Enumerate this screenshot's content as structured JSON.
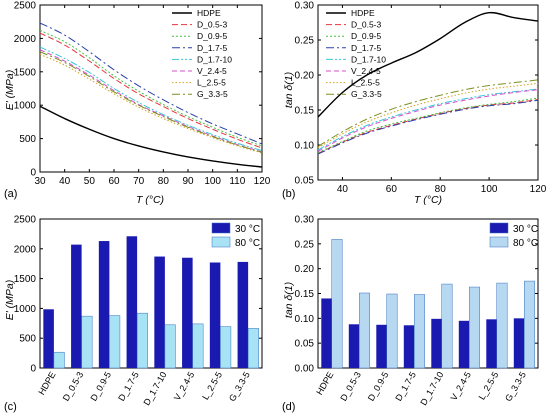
{
  "figure": {
    "panel_labels": [
      "(a)",
      "(b)",
      "(c)",
      "(d)"
    ]
  },
  "chart_data": [
    {
      "type": "line",
      "panel": "(a)",
      "xlabel": "T (°C)",
      "ylabel": "E' (MPa)",
      "xlim": [
        30,
        120
      ],
      "ylim": [
        0,
        2500
      ],
      "xticks": [
        30,
        40,
        50,
        60,
        70,
        80,
        90,
        100,
        110,
        120
      ],
      "yticks": [
        0,
        500,
        1000,
        1500,
        2000,
        2500
      ],
      "x": [
        30,
        40,
        50,
        60,
        70,
        80,
        90,
        100,
        110,
        120
      ],
      "legend_position": "top-right",
      "series": [
        {
          "name": "HDPE",
          "color": "#000000",
          "dash": "solid",
          "values": [
            985,
            800,
            640,
            500,
            390,
            300,
            225,
            165,
            115,
            75
          ]
        },
        {
          "name": "D_0.5-3",
          "color": "#e8343e",
          "dash": "6,3",
          "values": [
            2080,
            1900,
            1660,
            1400,
            1170,
            980,
            800,
            640,
            490,
            360
          ]
        },
        {
          "name": "D_0.9-5",
          "color": "#43c043",
          "dash": "2,2",
          "values": [
            2120,
            1950,
            1710,
            1440,
            1210,
            1010,
            830,
            670,
            520,
            390
          ]
        },
        {
          "name": "D_1.7-5",
          "color": "#2a3fa8",
          "dash": "8,3,2,3",
          "values": [
            2230,
            2050,
            1800,
            1530,
            1290,
            1080,
            890,
            720,
            570,
            420
          ]
        },
        {
          "name": "D_1.7-10",
          "color": "#39c6d6",
          "dash": "7,2,2,2,2,2",
          "values": [
            1870,
            1700,
            1490,
            1250,
            1040,
            860,
            700,
            560,
            430,
            320
          ]
        },
        {
          "name": "V_2.4-5",
          "color": "#d94fd1",
          "dash": "5,3",
          "values": [
            1830,
            1660,
            1450,
            1220,
            1010,
            840,
            680,
            540,
            410,
            300
          ]
        },
        {
          "name": "L_2.5-5",
          "color": "#d4a21c",
          "dash": "1.5,2",
          "values": [
            1760,
            1600,
            1390,
            1170,
            970,
            800,
            650,
            515,
            390,
            285
          ]
        },
        {
          "name": "G_3.3-5",
          "color": "#7c8f1f",
          "dash": "8,3,2,3",
          "values": [
            1800,
            1640,
            1430,
            1200,
            1000,
            830,
            670,
            530,
            405,
            295
          ]
        }
      ]
    },
    {
      "type": "line",
      "panel": "(b)",
      "xlabel": "T (°C)",
      "ylabel": "tan δ(1)",
      "xlim": [
        30,
        120
      ],
      "ylim": [
        0.05,
        0.3
      ],
      "xticks": [
        40,
        60,
        80,
        100,
        120
      ],
      "yticks": [
        0.05,
        0.1,
        0.15,
        0.2,
        0.25,
        0.3
      ],
      "x": [
        30,
        40,
        50,
        60,
        70,
        80,
        90,
        100,
        110,
        120
      ],
      "legend_position": "top-left",
      "series": [
        {
          "name": "HDPE",
          "color": "#000000",
          "dash": "solid",
          "values": [
            0.14,
            0.175,
            0.2,
            0.217,
            0.232,
            0.252,
            0.275,
            0.289,
            0.282,
            0.277
          ]
        },
        {
          "name": "D_0.5-3",
          "color": "#e8343e",
          "dash": "6,3",
          "values": [
            0.088,
            0.104,
            0.118,
            0.128,
            0.137,
            0.145,
            0.152,
            0.157,
            0.16,
            0.165
          ]
        },
        {
          "name": "D_0.9-5",
          "color": "#43c043",
          "dash": "2,2",
          "values": [
            0.089,
            0.105,
            0.12,
            0.13,
            0.138,
            0.146,
            0.153,
            0.158,
            0.162,
            0.167
          ]
        },
        {
          "name": "D_1.7-5",
          "color": "#2a3fa8",
          "dash": "8,3,2,3",
          "values": [
            0.087,
            0.103,
            0.117,
            0.127,
            0.136,
            0.144,
            0.151,
            0.156,
            0.159,
            0.164
          ]
        },
        {
          "name": "D_1.7-10",
          "color": "#39c6d6",
          "dash": "7,2,2,2,2,2",
          "values": [
            0.093,
            0.112,
            0.128,
            0.14,
            0.15,
            0.159,
            0.166,
            0.172,
            0.176,
            0.18
          ]
        },
        {
          "name": "V_2.4-5",
          "color": "#d94fd1",
          "dash": "5,3",
          "values": [
            0.091,
            0.11,
            0.126,
            0.138,
            0.148,
            0.157,
            0.164,
            0.17,
            0.175,
            0.179
          ]
        },
        {
          "name": "L_2.5-5",
          "color": "#d4a21c",
          "dash": "1.5,2",
          "values": [
            0.096,
            0.116,
            0.133,
            0.146,
            0.157,
            0.166,
            0.174,
            0.18,
            0.184,
            0.188
          ]
        },
        {
          "name": "G_3.3-5",
          "color": "#7c8f1f",
          "dash": "8,3,2,3",
          "values": [
            0.098,
            0.119,
            0.137,
            0.151,
            0.162,
            0.171,
            0.179,
            0.185,
            0.189,
            0.193
          ]
        }
      ]
    },
    {
      "type": "bar",
      "panel": "(c)",
      "xlabel": "",
      "ylabel": "E' (MPa)",
      "ylim": [
        0,
        2500
      ],
      "yticks": [
        0,
        500,
        1000,
        1500,
        2000,
        2500
      ],
      "categories": [
        "HDPE",
        "D_0.5-3",
        "D_0.9-5",
        "D_1.7-5",
        "D_1.7-10",
        "V_2.4-5",
        "L_2.5-5",
        "G_3.3-5"
      ],
      "legend_position": "top-right",
      "series": [
        {
          "name": "30 °C",
          "color": "#1a1ab0",
          "values": [
            985,
            2070,
            2130,
            2210,
            1870,
            1850,
            1770,
            1780
          ]
        },
        {
          "name": "80 °C",
          "color": "#a7e3f5",
          "values": [
            265,
            870,
            880,
            920,
            725,
            740,
            695,
            665
          ]
        }
      ]
    },
    {
      "type": "bar",
      "panel": "(d)",
      "xlabel": "",
      "ylabel": "tan δ(1)",
      "ylim": [
        0.0,
        0.3
      ],
      "yticks": [
        0.0,
        0.05,
        0.1,
        0.15,
        0.2,
        0.25,
        0.3
      ],
      "categories": [
        "HDPE",
        "D_0.5-3",
        "D_0.9-5",
        "D_1.7-5",
        "D_1.7-10",
        "V_2.4-5",
        "L_2.5-5",
        "G_3.3-5"
      ],
      "legend_position": "top-right",
      "series": [
        {
          "name": "30 °C",
          "color": "#1a1ab0",
          "values": [
            0.14,
            0.088,
            0.087,
            0.086,
            0.099,
            0.095,
            0.098,
            0.1
          ]
        },
        {
          "name": "80 °C",
          "color": "#b6d8f0",
          "values": [
            0.259,
            0.151,
            0.149,
            0.148,
            0.169,
            0.163,
            0.171,
            0.175
          ]
        }
      ]
    }
  ]
}
